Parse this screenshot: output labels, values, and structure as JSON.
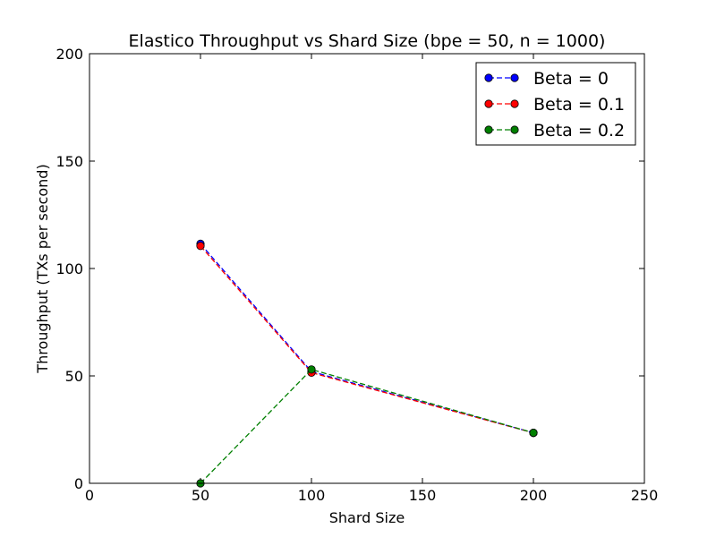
{
  "chart_data": {
    "type": "line",
    "title": "Elastico Throughput vs Shard Size (bpe = 50, n = 1000)",
    "xlabel": "Shard Size",
    "ylabel": "Throughput (TXs per second)",
    "xlim": [
      0,
      250
    ],
    "ylim": [
      0,
      200
    ],
    "xticks": [
      0,
      50,
      100,
      150,
      200,
      250
    ],
    "yticks": [
      0,
      50,
      100,
      150,
      200
    ],
    "grid": false,
    "legend_position": "top-right",
    "series": [
      {
        "name": "Beta = 0",
        "color": "#0000ff",
        "line_style": "dashed",
        "marker": "circle",
        "x": [
          50,
          100,
          200
        ],
        "y": [
          111.5,
          52,
          23.5
        ]
      },
      {
        "name": "Beta = 0.1",
        "color": "#ff0000",
        "line_style": "dashed",
        "marker": "circle",
        "x": [
          50,
          100,
          200
        ],
        "y": [
          110.5,
          51.5,
          23.5
        ]
      },
      {
        "name": "Beta = 0.2",
        "color": "#007f00",
        "line_style": "dashed",
        "marker": "circle",
        "x": [
          50,
          100,
          200
        ],
        "y": [
          0,
          53,
          23.5
        ]
      }
    ]
  }
}
